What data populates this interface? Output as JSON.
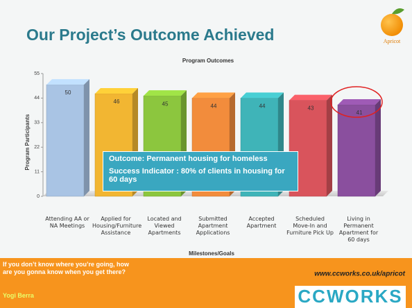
{
  "header": {
    "title": "Our Project’s Outcome Achieved"
  },
  "logo": "Apricot",
  "chart_data": {
    "type": "bar",
    "title": "Program Outcomes",
    "y_label": "Program Participants",
    "x_label": "Milestones/Goals",
    "categories": [
      "Attending AA or NA Meetings",
      "Applied for Housing/Furniture Assistance",
      "Located and Viewed Apartments",
      "Submitted Apartment Applications",
      "Accepted Apartment",
      "Scheduled Move-In and Furniture Pick Up",
      "Living in Permanent Apartment for 60 days"
    ],
    "values": [
      50,
      46,
      45,
      44,
      44,
      43,
      41
    ],
    "colors": [
      "#a9c4e4",
      "#f2b632",
      "#8cc63e",
      "#f28c3c",
      "#3fb4b8",
      "#d9545c",
      "#8a4f9e"
    ],
    "ylim": [
      0,
      55
    ],
    "yticks": [
      0,
      11,
      22,
      33,
      44,
      55
    ]
  },
  "callout": {
    "lines": [
      "Outcome: Permanent housing for homeless",
      "Success Indicator : 80% of clients in housing for 60 days"
    ]
  },
  "footer": {
    "quote": "If you don’t know where you’re going, how are you gonna know when you get there?",
    "author": "Yogi Berra",
    "url": "www.ccworks.co.uk/apricot",
    "brand": "CCWORKS"
  }
}
